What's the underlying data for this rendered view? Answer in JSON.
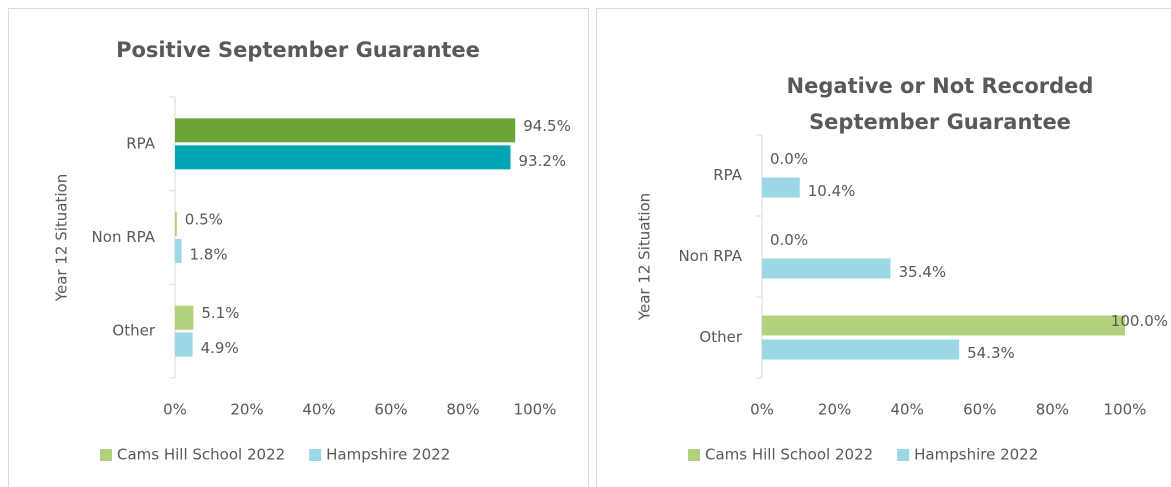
{
  "chart_data": [
    {
      "type": "bar",
      "orientation": "horizontal",
      "title": "Positive September Guarantee",
      "y_label": "Year 12 Situation",
      "categories": [
        "RPA",
        "Non RPA",
        "Other"
      ],
      "series": [
        {
          "name": "Cams Hill School 2022",
          "color": "#b3d17c",
          "colors": [
            "#6ba539",
            "#b3d17c",
            "#b3d17c"
          ],
          "values": [
            94.5,
            0.5,
            5.1
          ],
          "value_labels": [
            "94.5%",
            "0.5%",
            "5.1%"
          ]
        },
        {
          "name": "Hampshire 2022",
          "color": "#9bd7e4",
          "colors": [
            "#00a5b5",
            "#9bd7e4",
            "#9bd7e4"
          ],
          "values": [
            93.2,
            1.8,
            4.9
          ],
          "value_labels": [
            "93.2%",
            "1.8%",
            "4.9%"
          ]
        }
      ],
      "xlim": [
        0,
        100
      ],
      "xticks": [
        {
          "value": 0,
          "label": "0%"
        },
        {
          "value": 20,
          "label": "20%"
        },
        {
          "value": 40,
          "label": "40%"
        },
        {
          "value": 60,
          "label": "60%"
        },
        {
          "value": 80,
          "label": "80%"
        },
        {
          "value": 100,
          "label": "100%"
        }
      ],
      "legend": "bottom"
    },
    {
      "type": "bar",
      "orientation": "horizontal",
      "title": "Negative or Not Recorded September Guarantee",
      "y_label": "Year 12 Situation",
      "categories": [
        "RPA",
        "Non RPA",
        "Other"
      ],
      "series": [
        {
          "name": "Cams Hill School 2022",
          "color": "#b3d17c",
          "colors": [
            "#b3d17c",
            "#b3d17c",
            "#b3d17c"
          ],
          "values": [
            0.0,
            0.0,
            100.0
          ],
          "value_labels": [
            "0.0%",
            "0.0%",
            "100.0%"
          ]
        },
        {
          "name": "Hampshire 2022",
          "color": "#9bd7e4",
          "colors": [
            "#9bd7e4",
            "#9bd7e4",
            "#9bd7e4"
          ],
          "values": [
            10.4,
            35.4,
            54.3
          ],
          "value_labels": [
            "10.4%",
            "35.4%",
            "54.3%"
          ]
        }
      ],
      "xlim": [
        0,
        100
      ],
      "xticks": [
        {
          "value": 0,
          "label": "0%"
        },
        {
          "value": 20,
          "label": "20%"
        },
        {
          "value": 40,
          "label": "40%"
        },
        {
          "value": 60,
          "label": "60%"
        },
        {
          "value": 80,
          "label": "80%"
        },
        {
          "value": 100,
          "label": "100%"
        }
      ],
      "legend": "bottom"
    }
  ]
}
